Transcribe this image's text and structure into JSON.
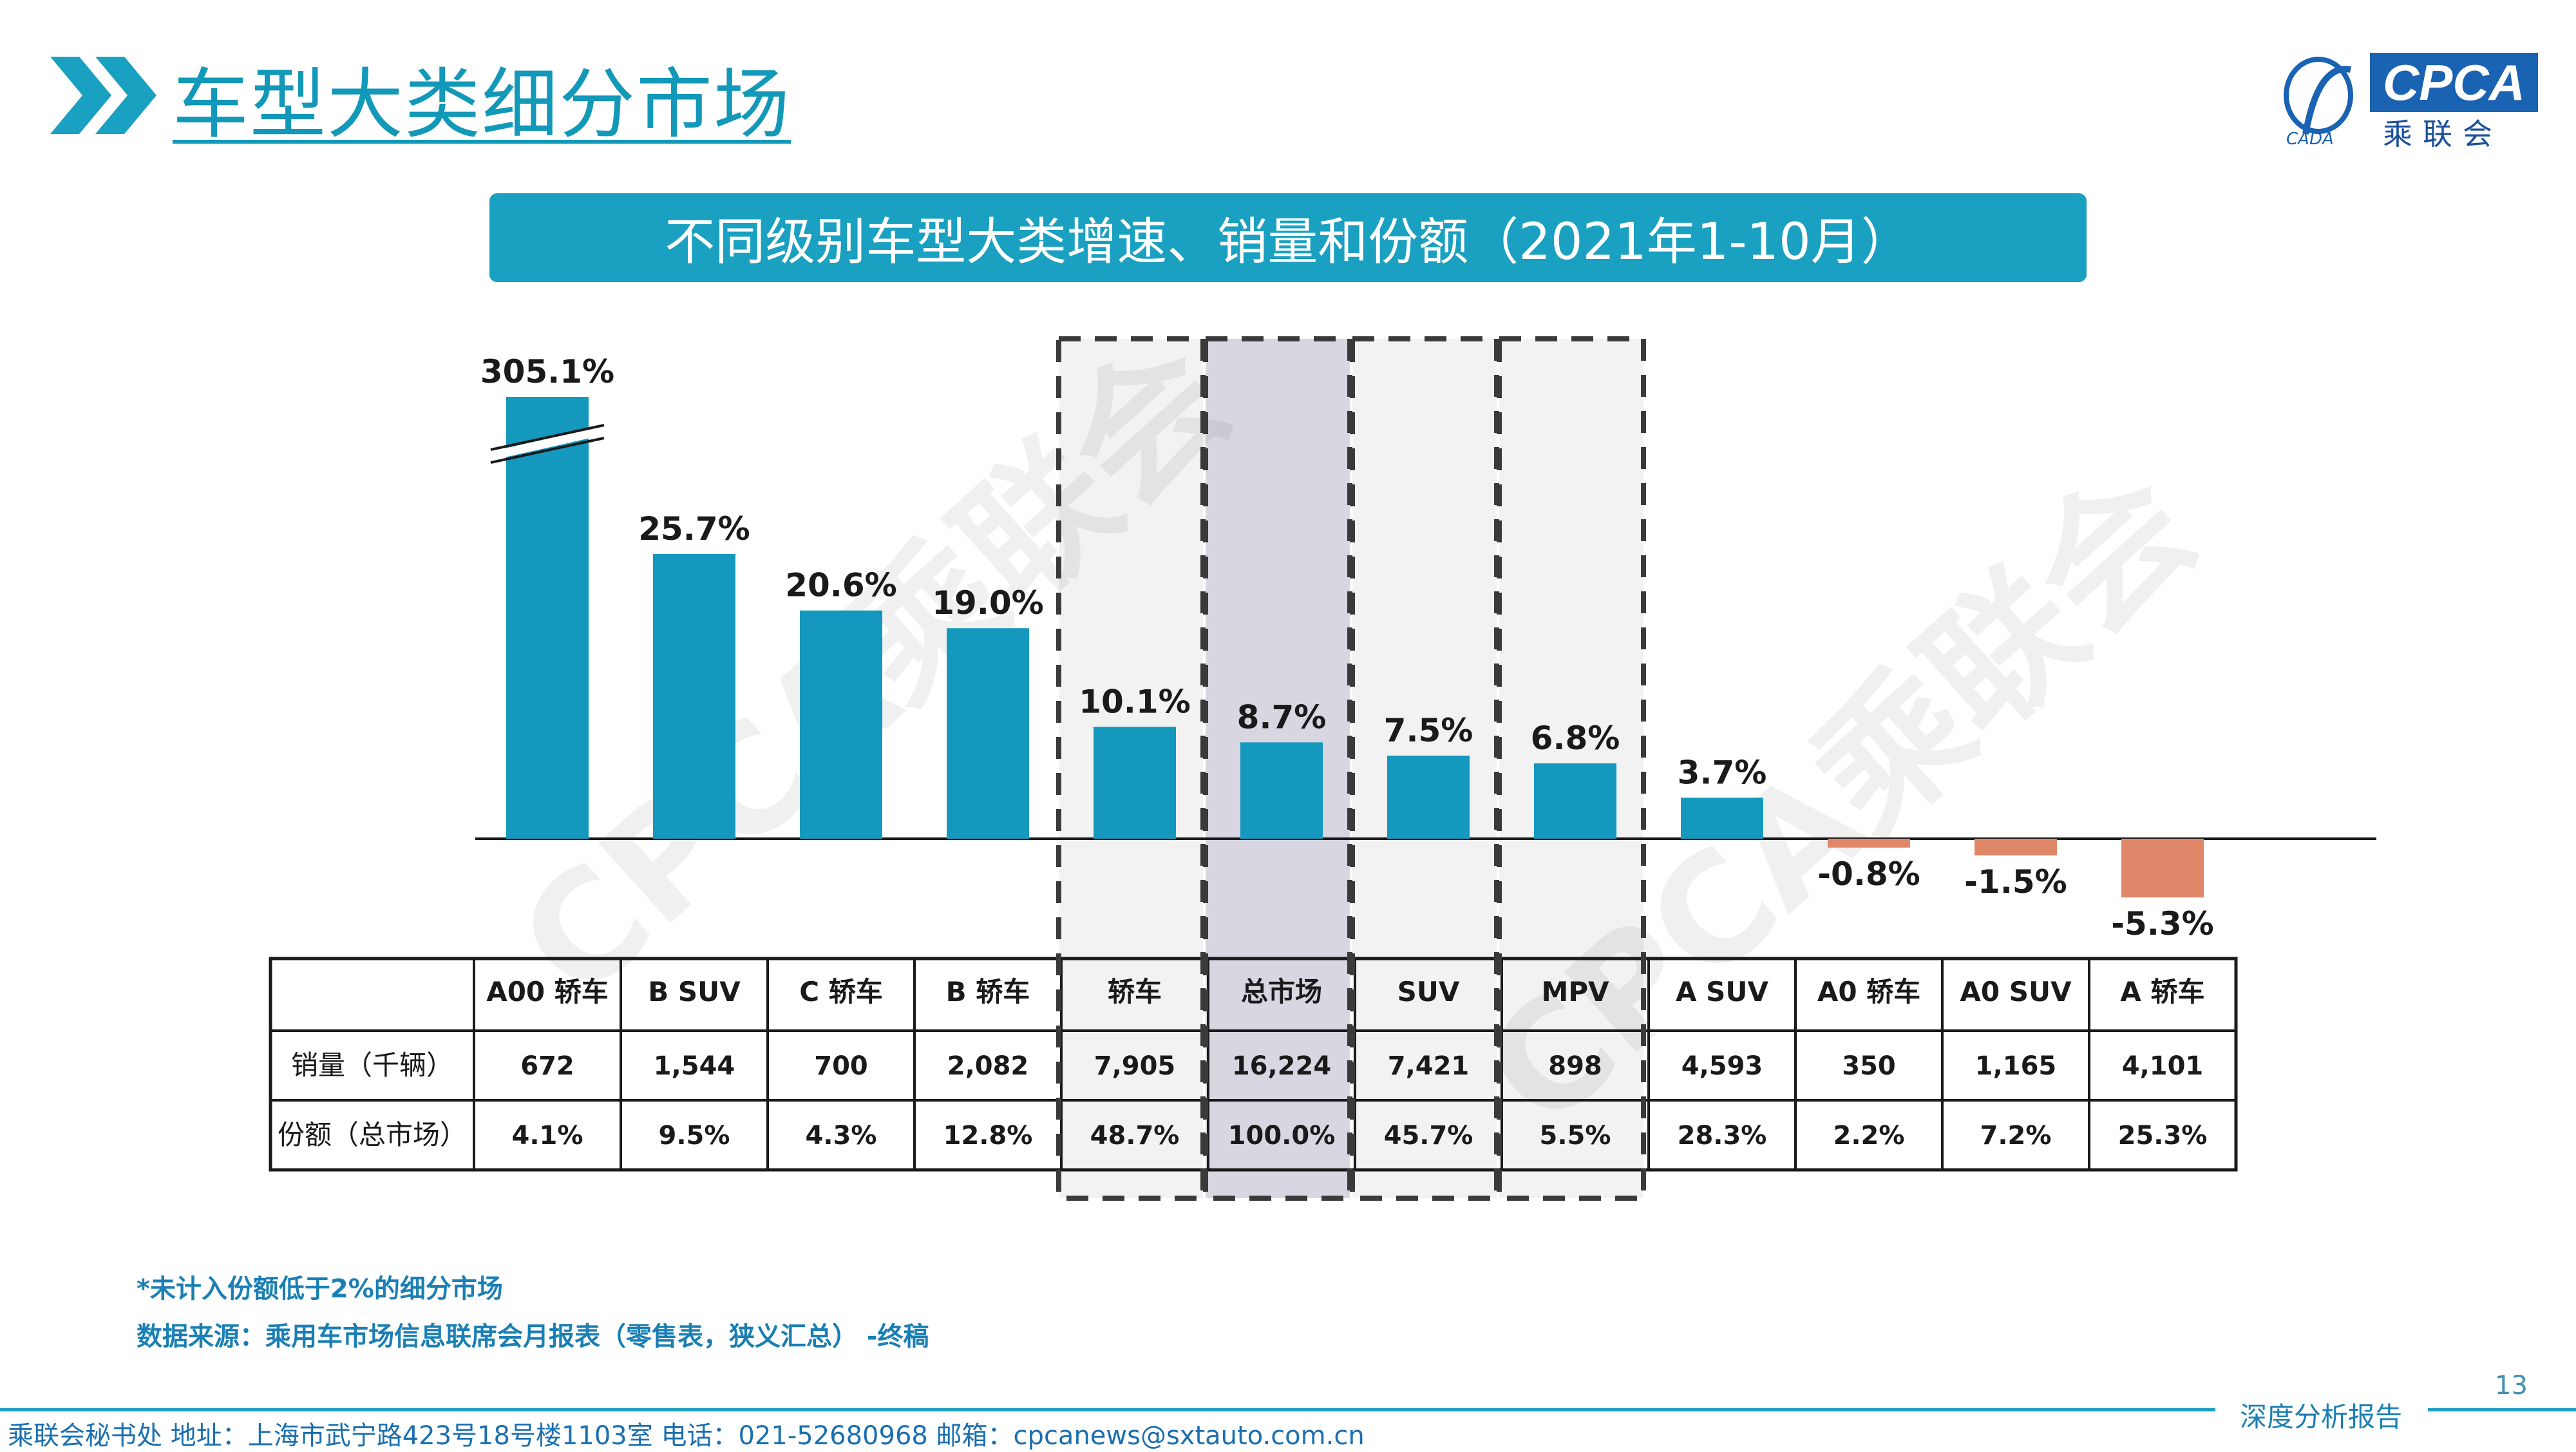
{
  "page": {
    "title": "车型大类细分市场",
    "banner": "不同级别车型大类增速、销量和份额（2021年1-10月）",
    "logo": {
      "name": "CPCA",
      "sub": "乘联会",
      "small": "CADA"
    },
    "watermark": "CPCA乘联会",
    "footnote": "*未计入份额低于2%的细分市场",
    "source": "数据来源：乘用车市场信息联席会月报表（零售表，狭义汇总） -终稿",
    "page_number": "13",
    "report_label": "深度分析报告",
    "footer": "乘联会秘书处   地址：上海市武宁路423号18号楼1103室  电话：021-52680968   邮箱：cpcanews@sxtauto.com.cn"
  },
  "colors": {
    "accent": "#1298b8",
    "bar_positive": "#1598bd",
    "bar_negative": "#e0876a",
    "highlight_total": "#d8d6e0",
    "highlight_box": "#f2f2f2"
  },
  "chart_data": {
    "type": "bar",
    "title": "不同级别车型大类增速、销量和份额（2021年1-10月）",
    "categories": [
      "A00 轿车",
      "B SUV",
      "C 轿车",
      "B 轿车",
      "轿车",
      "总市场",
      "SUV",
      "MPV",
      "A SUV",
      "A0 轿车",
      "A0 SUV",
      "A 轿车"
    ],
    "series": [
      {
        "name": "增速",
        "values": [
          305.1,
          25.7,
          20.6,
          19.0,
          10.1,
          8.7,
          7.5,
          6.8,
          3.7,
          -0.8,
          -1.5,
          -5.3
        ]
      }
    ],
    "data_labels": [
      "305.1%",
      "25.7%",
      "20.6%",
      "19.0%",
      "10.1%",
      "8.7%",
      "7.5%",
      "6.8%",
      "3.7%",
      "-0.8%",
      "-1.5%",
      "-5.3%"
    ],
    "broken_axis_category": "A00 轿车",
    "highlighted_categories": [
      "轿车",
      "总市场",
      "SUV",
      "MPV"
    ],
    "table": {
      "row_labels": [
        "销量（千辆）",
        "份额（总市场）"
      ],
      "rows": [
        [
          "672",
          "1,544",
          "700",
          "2,082",
          "7,905",
          "16,224",
          "7,421",
          "898",
          "4,593",
          "350",
          "1,165",
          "4,101"
        ],
        [
          "4.1%",
          "9.5%",
          "4.3%",
          "12.8%",
          "48.7%",
          "100.0%",
          "45.7%",
          "5.5%",
          "28.3%",
          "2.2%",
          "7.2%",
          "25.3%"
        ]
      ]
    }
  }
}
